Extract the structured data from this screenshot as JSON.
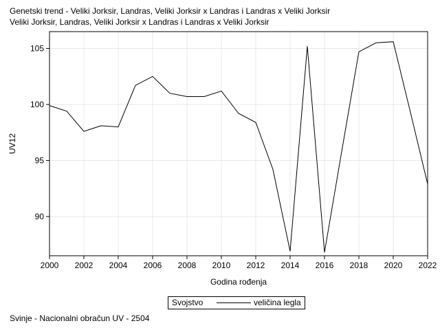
{
  "title_line1": "Genetski trend - Veliki Jorksir, Landras, Veliki Jorksir x Landras i Landras x Veliki Jorksir",
  "title_line2": "Veliki Jorksir, Landras, Veliki Jorksir x Landras i Landras x Veliki Jorksir",
  "footnote": "Svinje - Nacionalni obračun UV - 2504",
  "legend": {
    "title": "Svojstvo",
    "entry": "veličina legla"
  },
  "colors": {
    "line": "#000000",
    "grid": "#e8e8e8",
    "axis": "#000000"
  },
  "chart_data": {
    "type": "line",
    "xlabel": "Godina rođenja",
    "ylabel": "UV12",
    "xlim": [
      2000,
      2022
    ],
    "ylim": [
      86.5,
      106.5
    ],
    "x_ticks": [
      2000,
      2002,
      2004,
      2006,
      2008,
      2010,
      2012,
      2014,
      2016,
      2018,
      2020,
      2022
    ],
    "y_ticks": [
      90,
      95,
      100,
      105
    ],
    "grid": true,
    "legend_position": "bottom",
    "series": [
      {
        "name": "veličina legla",
        "x": [
          2000,
          2001,
          2002,
          2003,
          2004,
          2005,
          2006,
          2007,
          2008,
          2009,
          2010,
          2011,
          2012,
          2013,
          2014,
          2015,
          2016,
          2017,
          2018,
          2019,
          2020,
          2021,
          2022
        ],
        "values": [
          99.9,
          99.4,
          97.6,
          98.1,
          98.0,
          101.7,
          102.5,
          101.0,
          100.7,
          100.7,
          101.2,
          99.2,
          98.4,
          94.2,
          86.9,
          105.2,
          86.8,
          95.8,
          104.7,
          105.5,
          105.6,
          99.3,
          92.9
        ]
      }
    ]
  }
}
